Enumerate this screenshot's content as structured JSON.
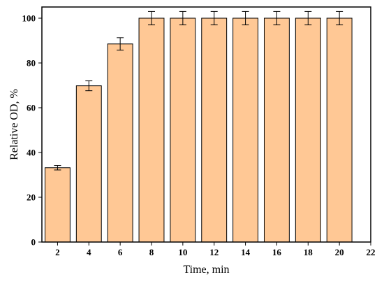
{
  "chart_data": {
    "type": "bar",
    "xlabel": "Time, min",
    "ylabel": "Relative OD, %",
    "xlim": [
      1,
      22
    ],
    "ylim": [
      0,
      105
    ],
    "x_ticks": [
      "2",
      "4",
      "6",
      "8",
      "10",
      "12",
      "14",
      "16",
      "18",
      "20",
      "22"
    ],
    "y_ticks": [
      "0",
      "20",
      "40",
      "60",
      "80",
      "100"
    ],
    "categories": [
      2,
      4,
      6,
      8,
      10,
      12,
      14,
      16,
      18,
      20
    ],
    "values": [
      33.2,
      69.8,
      88.5,
      100,
      100,
      100,
      100,
      100,
      100,
      100
    ],
    "errors": [
      1.0,
      2.2,
      2.8,
      3.0,
      3.0,
      3.0,
      3.0,
      3.0,
      3.0,
      3.0
    ],
    "bar_color": "#FFC895",
    "grid": false,
    "legend": "none"
  }
}
